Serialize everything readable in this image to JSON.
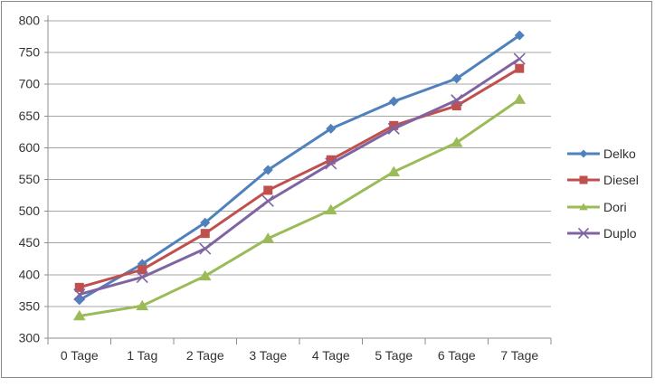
{
  "window": {
    "background": "#FFFFFF",
    "border_color": "#8A8A8A"
  },
  "chart_data": {
    "type": "line",
    "title": "",
    "xlabel": "",
    "ylabel": "",
    "categories": [
      "0 Tage",
      "1 Tag",
      "2 Tage",
      "3 Tage",
      "4 Tage",
      "5 Tage",
      "6 Tage",
      "7 Tage"
    ],
    "series": [
      {
        "name": "Delko",
        "color": "#4F81BD",
        "marker": "diamond",
        "values": [
          360,
          417,
          482,
          565,
          630,
          673,
          709,
          777
        ]
      },
      {
        "name": "Diesel",
        "color": "#C0504D",
        "marker": "square",
        "values": [
          380,
          408,
          465,
          533,
          581,
          635,
          666,
          725
        ]
      },
      {
        "name": "Dori",
        "color": "#9BBB59",
        "marker": "triangle",
        "values": [
          335,
          351,
          398,
          457,
          502,
          562,
          608,
          676
        ]
      },
      {
        "name": "Duplo",
        "color": "#8064A2",
        "marker": "x",
        "values": [
          369,
          396,
          441,
          516,
          575,
          630,
          675,
          740
        ]
      }
    ],
    "ylim": [
      300,
      800
    ],
    "yticks": [
      300,
      350,
      400,
      450,
      500,
      550,
      600,
      650,
      700,
      750,
      800
    ],
    "grid": true,
    "legend_position": "right",
    "axis": {
      "grid_color": "#A6A6A6",
      "axis_color": "#8E8E8E",
      "tick_label_color": "#333333",
      "font_size_px": 13
    }
  }
}
